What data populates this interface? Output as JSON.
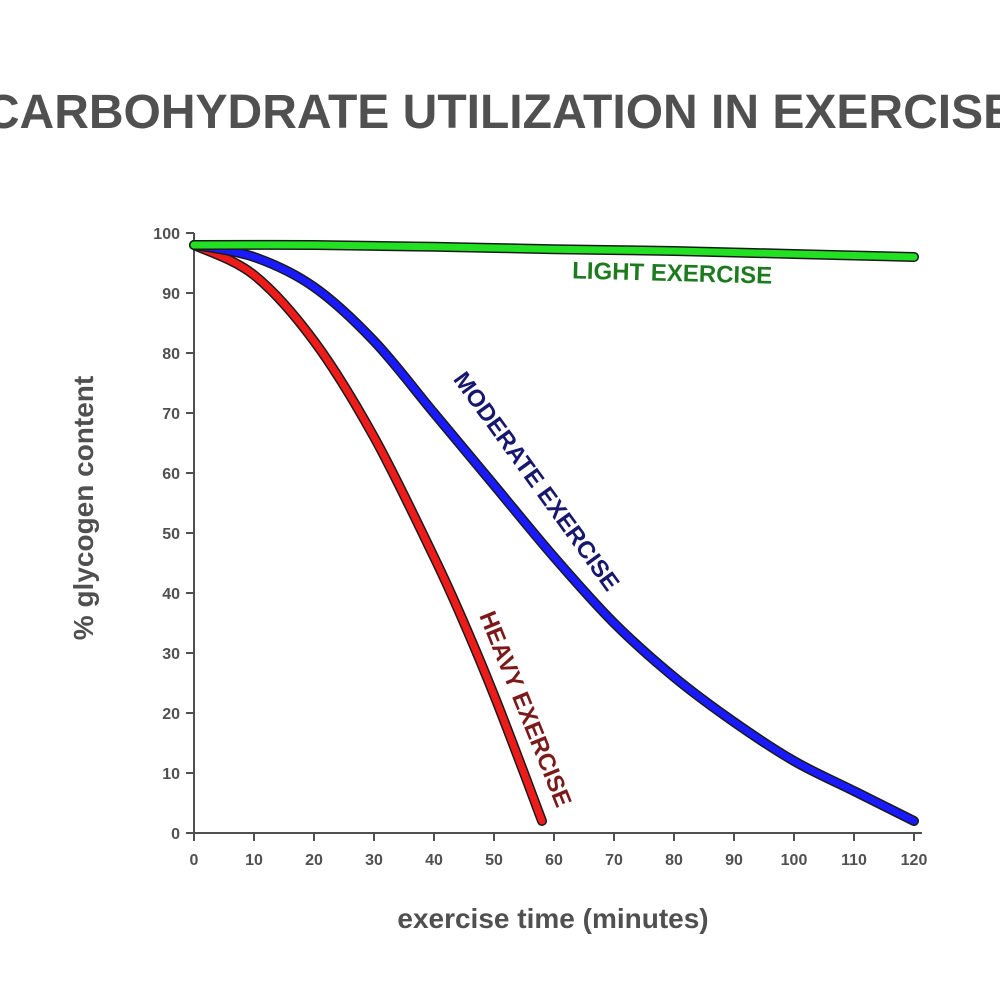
{
  "chart_data": {
    "type": "line",
    "title": "CARBOHYDRATE UTILIZATION IN EXERCISE",
    "xlabel": "exercise time (minutes)",
    "ylabel": "% glycogen content",
    "xlim": [
      0,
      120
    ],
    "ylim": [
      0,
      100
    ],
    "x_ticks": [
      "0",
      "10",
      "20",
      "30",
      "40",
      "50",
      "60",
      "70",
      "80",
      "90",
      "100",
      "110",
      "120"
    ],
    "y_ticks": [
      "0",
      "10",
      "20",
      "30",
      "40",
      "50",
      "60",
      "70",
      "80",
      "90",
      "100"
    ],
    "grid": false,
    "series": [
      {
        "name": "LIGHT EXERCISE",
        "color": "#22e022",
        "label_color": "#1e7a1e",
        "x": [
          0,
          20,
          40,
          60,
          80,
          100,
          120
        ],
        "y": [
          98,
          98,
          97.7,
          97.3,
          97,
          96.5,
          96
        ]
      },
      {
        "name": "MODERATE EXERCISE",
        "color": "#1a1aff",
        "label_color": "#17176e",
        "x": [
          0,
          10,
          20,
          30,
          40,
          50,
          60,
          70,
          80,
          90,
          100,
          110,
          120
        ],
        "y": [
          98,
          96,
          91,
          82,
          70,
          58,
          46,
          35,
          26,
          18.5,
          12,
          7,
          2
        ]
      },
      {
        "name": "HEAVY EXERCISE",
        "color": "#ee1b1b",
        "label_color": "#7a1a1a",
        "x": [
          0,
          10,
          20,
          30,
          40,
          45,
          50,
          55,
          58
        ],
        "y": [
          98,
          93,
          82,
          66,
          46,
          35,
          23,
          10,
          2
        ]
      }
    ]
  }
}
